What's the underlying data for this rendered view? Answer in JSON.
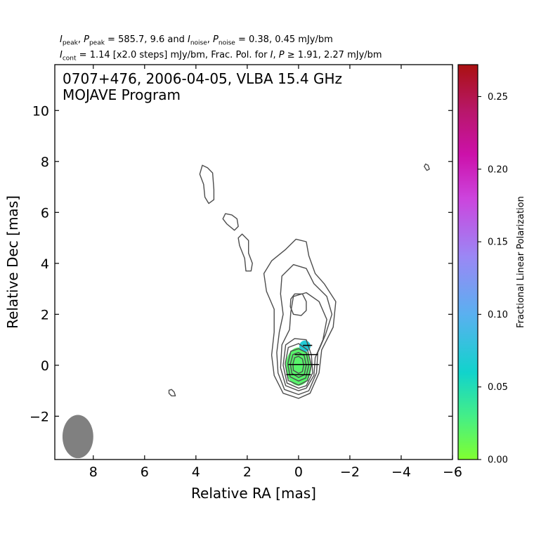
{
  "header": {
    "i_peak_label": "I",
    "i_peak_sub": "peak",
    "p_peak_label": "P",
    "p_peak_sub": "peak",
    "peak_values": "585.7, 9.6",
    "and_word": "and",
    "i_noise_label": "I",
    "i_noise_sub": "noise",
    "p_noise_label": "P",
    "p_noise_sub": "noise",
    "noise_values": "0.38, 0.45 mJy/bm",
    "i_cont_label": "I",
    "i_cont_sub": "cont",
    "cont_text": "= 1.14 [x2.0 steps] mJy/bm, Frac. Pol. for",
    "frac_pol_I": "I",
    "frac_pol_P": "P",
    "frac_pol_values": "1.91, 2.27 mJy/bm"
  },
  "chart_data": {
    "type": "contour",
    "title": "0707+476, 2006-04-05, VLBA 15.4 GHz",
    "subtitle": "MOJAVE Program",
    "xlabel": "Relative RA [mas]",
    "ylabel": "Relative Dec [mas]",
    "xlim": [
      9.5,
      -6
    ],
    "ylim": [
      -3.7,
      11.8
    ],
    "x_ticks": [
      8,
      6,
      4,
      2,
      0,
      -2,
      -4,
      -6
    ],
    "x_tick_labels": [
      "8",
      "6",
      "4",
      "2",
      "0",
      "−2",
      "−4",
      "−6"
    ],
    "y_ticks": [
      -2,
      0,
      2,
      4,
      6,
      8,
      10
    ],
    "y_tick_labels": [
      "−2",
      "0",
      "2",
      "4",
      "6",
      "8",
      "10"
    ],
    "contour_color": "#4d4d4d",
    "beam": {
      "x": 8.6,
      "y": -2.8,
      "major_mas": 0.85,
      "minor_mas": 0.6,
      "pa_deg": 0,
      "color": "#808080"
    },
    "contours": [
      [
        [
          0,
          -1.3
        ],
        [
          0.6,
          -1.1
        ],
        [
          0.95,
          -0.4
        ],
        [
          1.05,
          0.4
        ],
        [
          0.95,
          1.3
        ],
        [
          0.95,
          2.2
        ],
        [
          1.25,
          2.9
        ],
        [
          1.35,
          3.6
        ],
        [
          1.05,
          4.1
        ],
        [
          0.5,
          4.55
        ],
        [
          0.1,
          4.95
        ],
        [
          -0.3,
          4.85
        ],
        [
          -0.4,
          4.3
        ],
        [
          -0.65,
          3.6
        ],
        [
          -1.0,
          3.2
        ],
        [
          -1.45,
          2.5
        ],
        [
          -1.35,
          1.5
        ],
        [
          -0.9,
          0.6
        ],
        [
          -0.8,
          -0.3
        ],
        [
          -0.45,
          -1.1
        ]
      ],
      [
        [
          0,
          -1.15
        ],
        [
          0.55,
          -0.95
        ],
        [
          0.8,
          -0.3
        ],
        [
          0.85,
          0.5
        ],
        [
          0.75,
          1.3
        ],
        [
          0.6,
          2.0
        ],
        [
          0.7,
          2.8
        ],
        [
          0.65,
          3.5
        ],
        [
          0.2,
          3.95
        ],
        [
          -0.3,
          3.8
        ],
        [
          -0.6,
          3.2
        ],
        [
          -1.1,
          2.7
        ],
        [
          -1.3,
          2.0
        ],
        [
          -1.05,
          1.2
        ],
        [
          -0.75,
          0.5
        ],
        [
          -0.7,
          -0.3
        ],
        [
          -0.4,
          -1.0
        ]
      ],
      [
        [
          0,
          -1.0
        ],
        [
          0.5,
          -0.8
        ],
        [
          0.7,
          -0.1
        ],
        [
          0.65,
          0.8
        ],
        [
          0.35,
          1.4
        ],
        [
          0.3,
          2.1
        ],
        [
          0.2,
          2.7
        ],
        [
          -0.3,
          2.85
        ],
        [
          -0.8,
          2.5
        ],
        [
          -1.1,
          1.8
        ],
        [
          -0.95,
          1.0
        ],
        [
          -0.65,
          0.3
        ],
        [
          -0.6,
          -0.4
        ],
        [
          -0.3,
          -0.9
        ]
      ],
      [
        [
          0,
          -0.9
        ],
        [
          0.45,
          -0.7
        ],
        [
          0.6,
          0.0
        ],
        [
          0.5,
          0.8
        ],
        [
          0.15,
          1.05
        ],
        [
          -0.3,
          1.0
        ],
        [
          -0.5,
          0.4
        ],
        [
          -0.55,
          -0.3
        ],
        [
          -0.3,
          -0.8
        ]
      ],
      [
        [
          0,
          -0.78
        ],
        [
          0.4,
          -0.6
        ],
        [
          0.52,
          0.05
        ],
        [
          0.4,
          0.7
        ],
        [
          0.0,
          0.85
        ],
        [
          -0.35,
          0.6
        ],
        [
          -0.5,
          0.0
        ],
        [
          -0.35,
          -0.6
        ]
      ],
      [
        [
          0,
          -0.62
        ],
        [
          0.33,
          -0.45
        ],
        [
          0.42,
          0.05
        ],
        [
          0.3,
          0.55
        ],
        [
          0.0,
          0.65
        ],
        [
          -0.3,
          0.5
        ],
        [
          -0.4,
          0.0
        ],
        [
          -0.28,
          -0.5
        ]
      ],
      [
        [
          0,
          -0.48
        ],
        [
          0.26,
          -0.32
        ],
        [
          0.32,
          0.05
        ],
        [
          0.22,
          0.42
        ],
        [
          0.0,
          0.5
        ],
        [
          -0.22,
          0.38
        ],
        [
          -0.3,
          0.0
        ],
        [
          -0.22,
          -0.38
        ]
      ],
      [
        [
          0,
          -0.32
        ],
        [
          0.2,
          -0.2
        ],
        [
          0.22,
          0.05
        ],
        [
          0.15,
          0.3
        ],
        [
          0.0,
          0.35
        ],
        [
          -0.15,
          0.25
        ],
        [
          -0.2,
          0.0
        ],
        [
          -0.15,
          -0.25
        ]
      ],
      [
        [
          0.3,
          2.6
        ],
        [
          0.15,
          2.8
        ],
        [
          -0.15,
          2.8
        ],
        [
          -0.3,
          2.5
        ],
        [
          -0.3,
          2.15
        ],
        [
          -0.1,
          1.95
        ],
        [
          0.2,
          2.0
        ],
        [
          0.32,
          2.3
        ]
      ],
      [
        [
          3.75,
          7.85
        ],
        [
          3.55,
          7.75
        ],
        [
          3.35,
          7.55
        ],
        [
          3.3,
          6.9
        ],
        [
          3.3,
          6.5
        ],
        [
          3.5,
          6.35
        ],
        [
          3.65,
          6.6
        ],
        [
          3.7,
          7.1
        ],
        [
          3.85,
          7.5
        ]
      ],
      [
        [
          2.6,
          5.9
        ],
        [
          2.4,
          5.75
        ],
        [
          2.35,
          5.45
        ],
        [
          2.5,
          5.3
        ],
        [
          2.8,
          5.55
        ],
        [
          2.95,
          5.75
        ],
        [
          2.85,
          5.95
        ]
      ],
      [
        [
          2.2,
          5.15
        ],
        [
          1.95,
          4.9
        ],
        [
          1.95,
          4.4
        ],
        [
          1.8,
          4.0
        ],
        [
          1.85,
          3.7
        ],
        [
          2.05,
          3.7
        ],
        [
          2.1,
          4.2
        ],
        [
          2.3,
          4.7
        ],
        [
          2.35,
          5.0
        ]
      ],
      [
        [
          4.95,
          -0.95
        ],
        [
          4.85,
          -1.05
        ],
        [
          4.8,
          -1.2
        ],
        [
          4.95,
          -1.2
        ],
        [
          5.05,
          -1.1
        ],
        [
          5.05,
          -0.98
        ]
      ],
      [
        [
          -4.95,
          7.9
        ],
        [
          -5.05,
          7.85
        ],
        [
          -5.1,
          7.7
        ],
        [
          -5.0,
          7.65
        ],
        [
          -4.9,
          7.8
        ]
      ]
    ],
    "polarization": {
      "blobs": [
        {
          "cx": 0.0,
          "cy": -0.05,
          "rx": 0.5,
          "ry": 0.75,
          "frac": 0.02
        },
        {
          "cx": -0.25,
          "cy": 0.75,
          "rx": 0.22,
          "ry": 0.22,
          "frac": 0.07
        }
      ],
      "evpa_segments": [
        {
          "x": -0.35,
          "y": 0.78,
          "half_length": 0.18
        },
        {
          "x": -0.3,
          "y": 0.42,
          "half_length": 0.45
        },
        {
          "x": -0.2,
          "y": 0.03,
          "half_length": 0.6
        },
        {
          "x": 0.0,
          "y": -0.37,
          "half_length": 0.48
        }
      ]
    },
    "colorbar": {
      "label": "Fractional Linear Polarization",
      "vmin": 0.0,
      "vmax": 0.272,
      "ticks": [
        0.0,
        0.05,
        0.1,
        0.15,
        0.2,
        0.25
      ],
      "tick_labels": [
        "0.00",
        "0.05",
        "0.10",
        "0.15",
        "0.20",
        "0.25"
      ],
      "stops": [
        {
          "v": 0.0,
          "color": "#80ff30"
        },
        {
          "v": 0.03,
          "color": "#44ee88"
        },
        {
          "v": 0.06,
          "color": "#11d3cc"
        },
        {
          "v": 0.1,
          "color": "#5ab0f0"
        },
        {
          "v": 0.14,
          "color": "#9b87f5"
        },
        {
          "v": 0.18,
          "color": "#cc44dd"
        },
        {
          "v": 0.21,
          "color": "#cc11aa"
        },
        {
          "v": 0.24,
          "color": "#b8176a"
        },
        {
          "v": 0.272,
          "color": "#aa1111"
        }
      ]
    }
  }
}
